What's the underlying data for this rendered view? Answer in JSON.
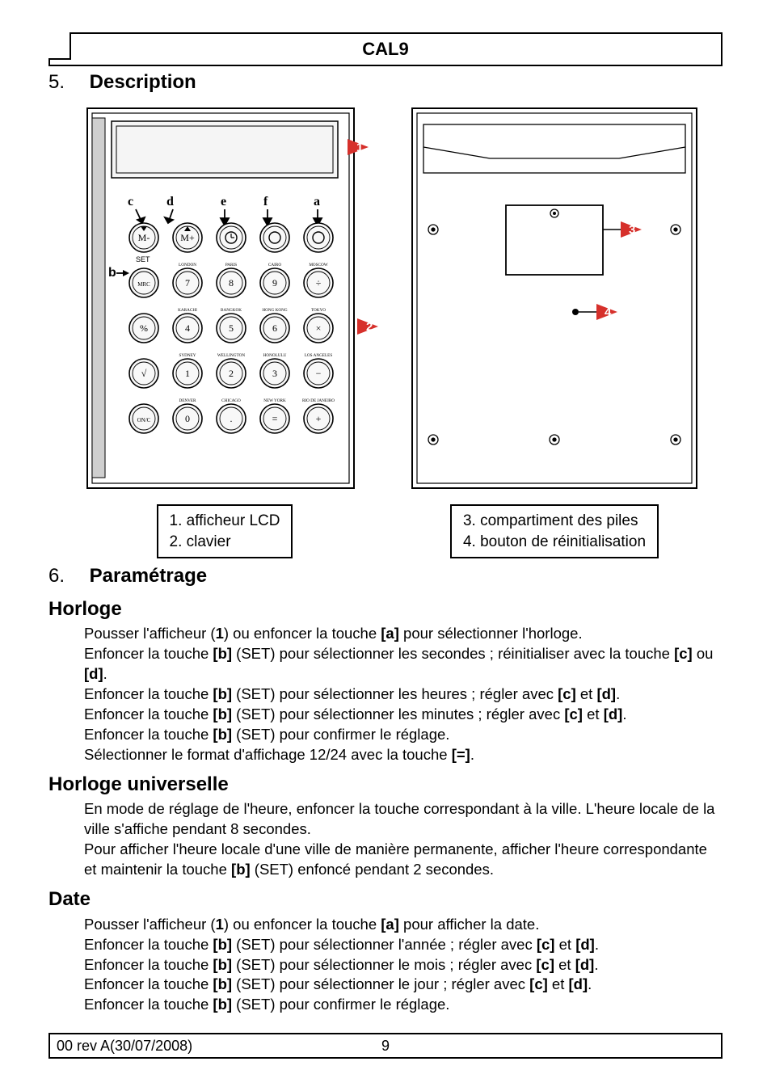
{
  "title": "CAL9",
  "sections": {
    "s5": {
      "num": "5.",
      "title": "Description"
    },
    "s6": {
      "num": "6.",
      "title": "Paramétrage"
    }
  },
  "figure_left": {
    "labels": {
      "a": "a",
      "b": "b",
      "c": "c",
      "d": "d",
      "e": "e",
      "f": "f",
      "SET": "SET"
    },
    "cities_row1": [
      "LONDON",
      "PARIS",
      "CAIRO",
      "MOSCOW"
    ],
    "cities_row2": [
      "KARACHI",
      "BANGKOK",
      "HONG KONG",
      "TOKYO"
    ],
    "cities_row3": [
      "SYDNEY",
      "WELLINGTON",
      "HONOLULU",
      "LOS ANGELES"
    ],
    "cities_row4": [
      "DENVER",
      "CHICAGO",
      "NEW YORK",
      "RIO DE JANEIRO"
    ],
    "keys": {
      "r1": [
        "M-",
        "M+",
        "",
        "",
        ""
      ],
      "r2": [
        "MRC",
        "7",
        "8",
        "9",
        "÷"
      ],
      "r3": [
        "%",
        "4",
        "5",
        "6",
        "×"
      ],
      "r4": [
        "√",
        "1",
        "2",
        "3",
        "−"
      ],
      "r5": [
        "ON/C",
        "0",
        ".",
        "=",
        "+"
      ]
    },
    "callouts": {
      "c1": "1",
      "c2": "2"
    },
    "caption": {
      "l1": "1. afficheur LCD",
      "l2": "2. clavier"
    },
    "colors": {
      "panel_outline": "#000",
      "shade": "#cfcfcf",
      "callout_fill": "#d6302b",
      "callout_text": "#ffffff"
    }
  },
  "figure_right": {
    "callouts": {
      "c3": "3",
      "c4": "4"
    },
    "caption": {
      "l1": "3. compartiment des piles",
      "l2": "4. bouton de réinitialisation"
    }
  },
  "horloge": {
    "title": "Horloge",
    "p1a": "Pousser l'afficheur (",
    "p1b": "1",
    "p1c": ") ou enfoncer la touche ",
    "p1d": "[a]",
    "p1e": " pour sélectionner l'horloge.",
    "p2a": "Enfoncer la touche ",
    "p2b": "[b]",
    "p2c": " (SET) pour sélectionner les secondes ; réinitialiser avec la touche ",
    "p2d": "[c]",
    "p2e": " ou ",
    "p2f": "[d]",
    "p2g": ".",
    "p3a": "Enfoncer la touche ",
    "p3b": "[b]",
    "p3c": " (SET) pour sélectionner les heures ; régler avec ",
    "p3d": "[c]",
    "p3e": " et ",
    "p3f": "[d]",
    "p3g": ".",
    "p4a": "Enfoncer la touche ",
    "p4b": "[b]",
    "p4c": " (SET) pour sélectionner les minutes ; régler avec ",
    "p4d": "[c]",
    "p4e": " et ",
    "p4f": "[d]",
    "p4g": ".",
    "p5a": "Enfoncer la touche ",
    "p5b": "[b]",
    "p5c": " (SET) pour confirmer le réglage.",
    "p6a": "Sélectionner le format d'affichage 12/24 avec la touche ",
    "p6b": "[=]",
    "p6c": "."
  },
  "horloge_univ": {
    "title": "Horloge universelle",
    "p1": "En mode de réglage de l'heure, enfoncer la touche correspondant à la ville. L'heure locale de la ville s'affiche pendant 8 secondes.",
    "p2a": "Pour afficher l'heure locale d'une ville de manière permanente, afficher l'heure correspondante et maintenir la touche ",
    "p2b": "[b]",
    "p2c": " (SET) enfoncé pendant 2 secondes."
  },
  "date": {
    "title": "Date",
    "p1a": "Pousser l'afficheur (",
    "p1b": "1",
    "p1c": ") ou enfoncer la touche ",
    "p1d": "[a]",
    "p1e": " pour afficher la date.",
    "p2a": "Enfoncer la touche ",
    "p2b": "[b]",
    "p2c": " (SET) pour sélectionner l'année ; régler avec ",
    "p2d": "[c]",
    "p2e": " et ",
    "p2f": "[d]",
    "p2g": ".",
    "p3a": "Enfoncer la touche ",
    "p3b": "[b]",
    "p3c": " (SET) pour sélectionner le mois ; régler avec ",
    "p3d": "[c]",
    "p3e": " et ",
    "p3f": "[d]",
    "p3g": ".",
    "p4a": "Enfoncer la touche ",
    "p4b": "[b]",
    "p4c": " (SET) pour sélectionner le jour ; régler avec ",
    "p4d": "[c]",
    "p4e": " et ",
    "p4f": "[d]",
    "p4g": ".",
    "p5a": "Enfoncer la touche ",
    "p5b": "[b]",
    "p5c": " (SET) pour confirmer le réglage."
  },
  "footer": {
    "rev": "00 rev A(30/07/2008)",
    "page": "9"
  }
}
